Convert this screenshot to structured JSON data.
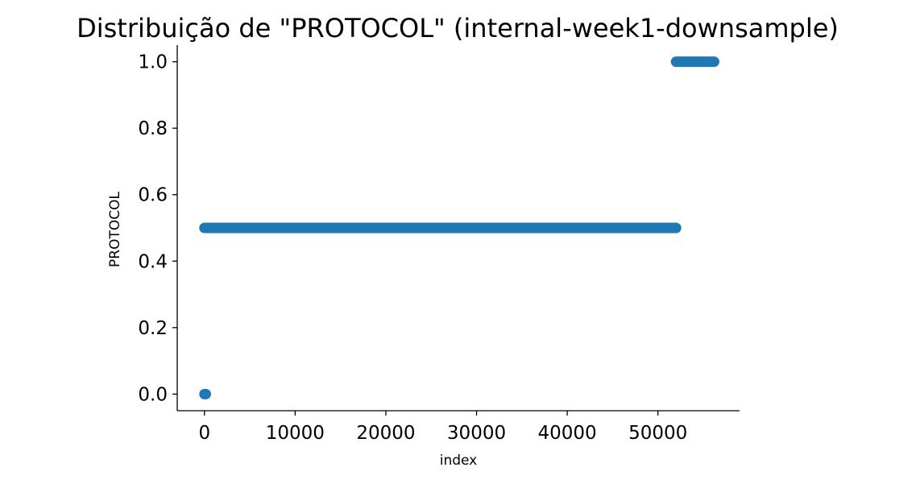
{
  "chart_data": {
    "type": "scatter",
    "title": "Distribuição de \"PROTOCOL\" (internal-week1-downsample)",
    "xlabel": "index",
    "ylabel": "PROTOCOL",
    "xlim": [
      -3000,
      59000
    ],
    "ylim": [
      -0.05,
      1.05
    ],
    "x_ticks": [
      0,
      10000,
      20000,
      30000,
      40000,
      50000
    ],
    "x_tick_labels": [
      "0",
      "10000",
      "20000",
      "30000",
      "40000",
      "50000"
    ],
    "y_ticks": [
      0.0,
      0.2,
      0.4,
      0.6,
      0.8,
      1.0
    ],
    "y_tick_labels": [
      "0.0",
      "0.2",
      "0.4",
      "0.6",
      "0.8",
      "1.0"
    ],
    "grid": false,
    "series": [
      {
        "color": "#1f77b4",
        "segments": [
          {
            "x_start": 0,
            "x_end": 150,
            "y": 0.0
          },
          {
            "x_start": 0,
            "x_end": 52000,
            "y": 0.5
          },
          {
            "x_start": 52000,
            "x_end": 56200,
            "y": 1.0
          }
        ]
      }
    ]
  }
}
